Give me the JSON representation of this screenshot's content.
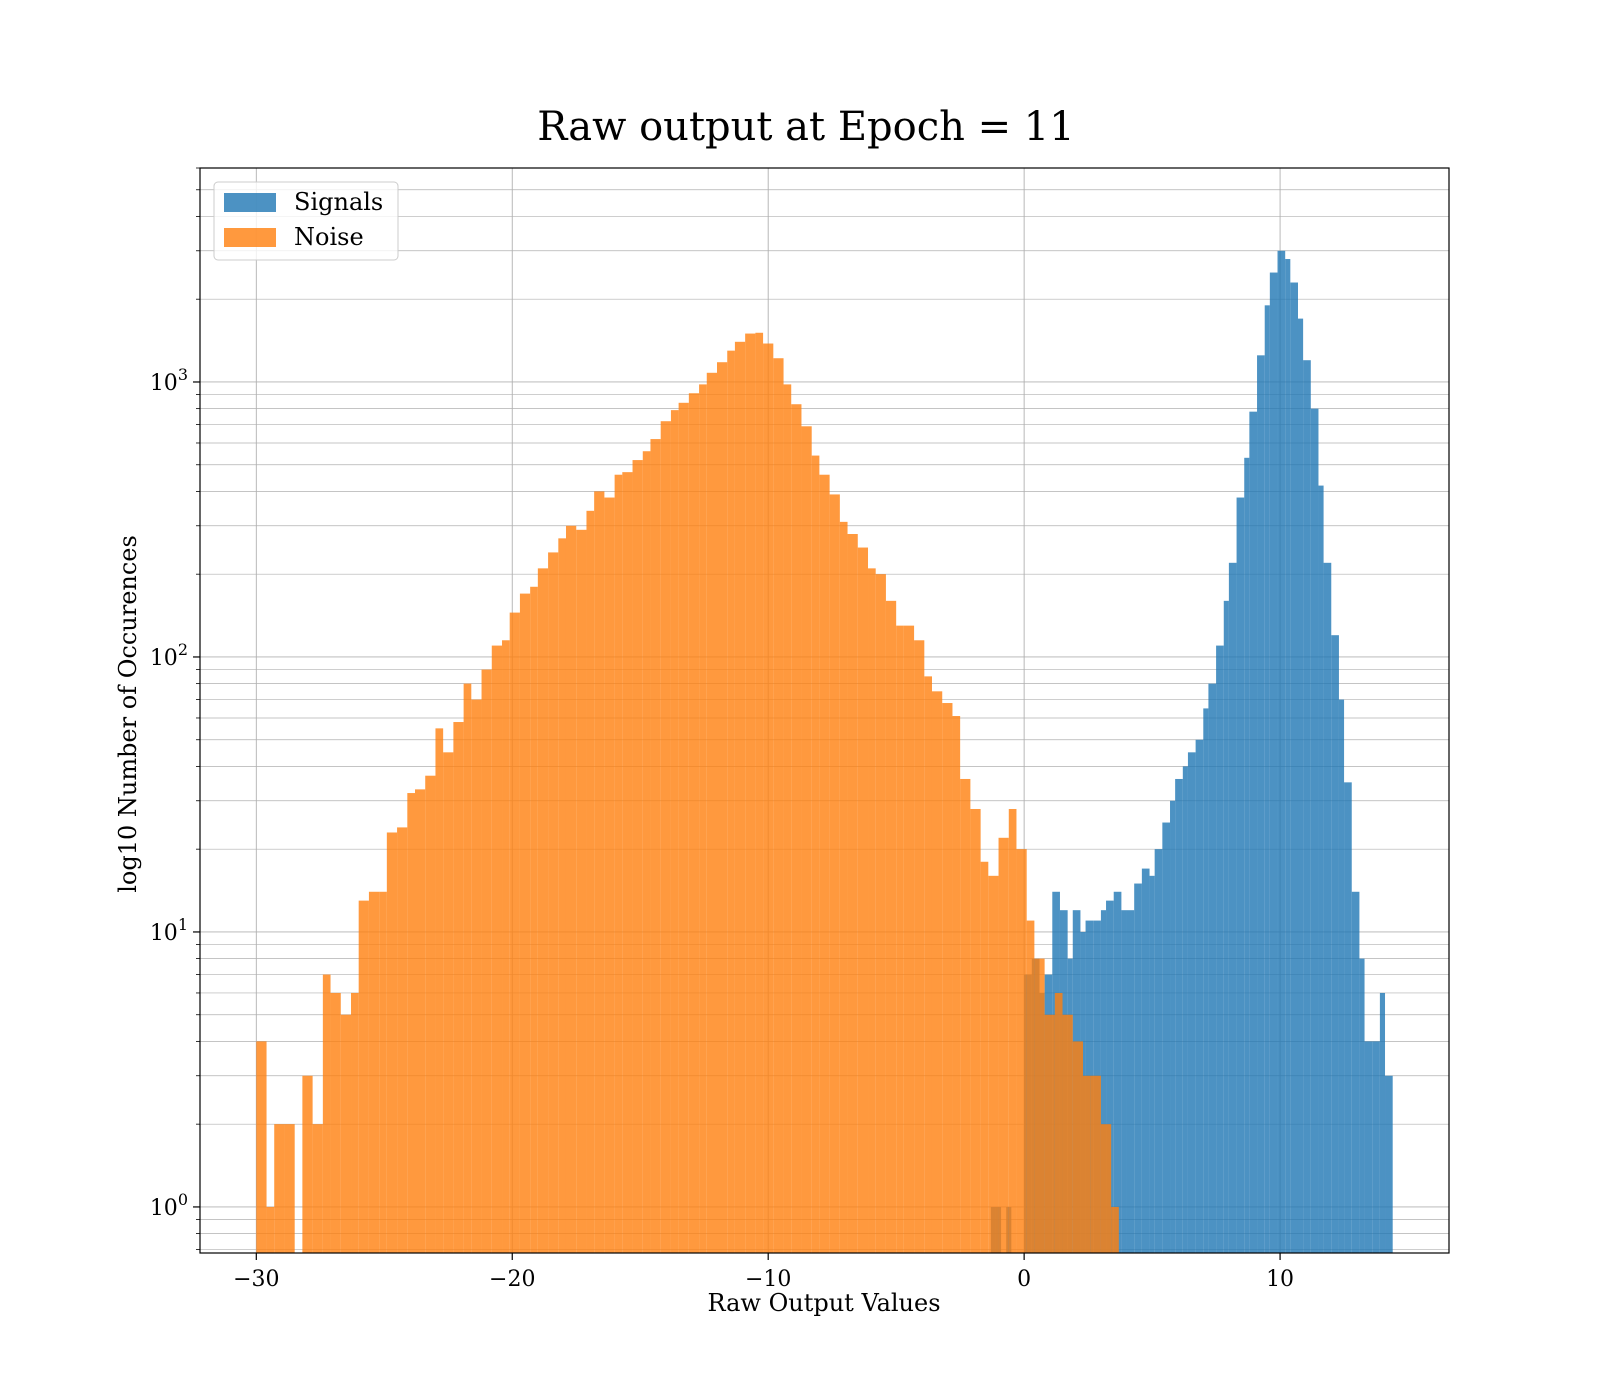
{
  "chart_data": {
    "type": "bar",
    "histogram": true,
    "title": "Raw output at Epoch = 11",
    "xlabel": "Raw Output Values",
    "ylabel": "log10 Number of Occurences",
    "xlim": [
      -32.2,
      16.6
    ],
    "ylim": [
      0.68,
      6000
    ],
    "yscale": "log",
    "grid": true,
    "legend_position": "upper left",
    "x_ticks": [
      {
        "value": -30,
        "label": "−30"
      },
      {
        "value": -20,
        "label": "−20"
      },
      {
        "value": -10,
        "label": "−10"
      },
      {
        "value": 0,
        "label": "0"
      },
      {
        "value": 10,
        "label": "10"
      }
    ],
    "y_ticks": [
      {
        "value": 1,
        "base": "10",
        "exp": "0"
      },
      {
        "value": 10,
        "base": "10",
        "exp": "1"
      },
      {
        "value": 100,
        "base": "10",
        "exp": "2"
      },
      {
        "value": 1000,
        "base": "10",
        "exp": "3"
      }
    ],
    "series": [
      {
        "name": "Signals",
        "color": "#1f77b4",
        "bins": [
          [
            -1.3,
            -1.1,
            1
          ],
          [
            -1.1,
            -0.9,
            1
          ],
          [
            -0.7,
            -0.5,
            1
          ],
          [
            0.0,
            0.3,
            7
          ],
          [
            0.3,
            0.6,
            8
          ],
          [
            0.6,
            0.8,
            6
          ],
          [
            0.8,
            1.1,
            7
          ],
          [
            1.1,
            1.4,
            14
          ],
          [
            1.4,
            1.7,
            12
          ],
          [
            1.7,
            1.9,
            8
          ],
          [
            1.9,
            2.2,
            12
          ],
          [
            2.2,
            2.4,
            10
          ],
          [
            2.4,
            2.7,
            11
          ],
          [
            2.7,
            3.0,
            11
          ],
          [
            3.0,
            3.2,
            12
          ],
          [
            3.2,
            3.5,
            13
          ],
          [
            3.5,
            3.8,
            14
          ],
          [
            3.8,
            4.0,
            12
          ],
          [
            4.0,
            4.3,
            12
          ],
          [
            4.3,
            4.6,
            15
          ],
          [
            4.6,
            4.9,
            17
          ],
          [
            4.9,
            5.1,
            16
          ],
          [
            5.1,
            5.4,
            20
          ],
          [
            5.4,
            5.7,
            25
          ],
          [
            5.7,
            5.9,
            30
          ],
          [
            5.9,
            6.2,
            36
          ],
          [
            6.2,
            6.4,
            40
          ],
          [
            6.4,
            6.7,
            45
          ],
          [
            6.7,
            7.0,
            50
          ],
          [
            7.0,
            7.2,
            65
          ],
          [
            7.2,
            7.5,
            80
          ],
          [
            7.5,
            7.8,
            110
          ],
          [
            7.8,
            8.0,
            160
          ],
          [
            8.0,
            8.3,
            220
          ],
          [
            8.3,
            8.6,
            380
          ],
          [
            8.6,
            8.8,
            530
          ],
          [
            8.8,
            9.1,
            780
          ],
          [
            9.1,
            9.4,
            1250
          ],
          [
            9.4,
            9.6,
            1900
          ],
          [
            9.6,
            9.9,
            2500
          ],
          [
            9.9,
            10.2,
            3000
          ],
          [
            10.2,
            10.4,
            2800
          ],
          [
            10.4,
            10.7,
            2300
          ],
          [
            10.7,
            10.9,
            1700
          ],
          [
            10.9,
            11.2,
            1200
          ],
          [
            11.2,
            11.5,
            800
          ],
          [
            11.5,
            11.7,
            420
          ],
          [
            11.7,
            12.0,
            220
          ],
          [
            12.0,
            12.3,
            120
          ],
          [
            12.3,
            12.5,
            70
          ],
          [
            12.5,
            12.8,
            35
          ],
          [
            12.8,
            13.1,
            14
          ],
          [
            13.1,
            13.3,
            8
          ],
          [
            13.3,
            13.6,
            4
          ],
          [
            13.6,
            13.9,
            4
          ],
          [
            13.9,
            14.1,
            6
          ],
          [
            14.1,
            14.4,
            3
          ]
        ]
      },
      {
        "name": "Noise",
        "color": "#ff7f0e",
        "bins": [
          [
            -30.0,
            -29.6,
            4
          ],
          [
            -29.6,
            -29.3,
            1
          ],
          [
            -29.3,
            -28.9,
            2
          ],
          [
            -28.9,
            -28.5,
            2
          ],
          [
            -28.2,
            -27.8,
            3
          ],
          [
            -27.8,
            -27.4,
            2
          ],
          [
            -27.4,
            -27.1,
            7
          ],
          [
            -27.1,
            -26.7,
            6
          ],
          [
            -26.7,
            -26.3,
            5
          ],
          [
            -26.3,
            -26.0,
            6
          ],
          [
            -26.0,
            -25.6,
            13
          ],
          [
            -25.6,
            -25.2,
            14
          ],
          [
            -25.2,
            -24.9,
            14
          ],
          [
            -24.9,
            -24.5,
            23
          ],
          [
            -24.5,
            -24.1,
            24
          ],
          [
            -24.1,
            -23.8,
            32
          ],
          [
            -23.8,
            -23.4,
            33
          ],
          [
            -23.4,
            -23.0,
            37
          ],
          [
            -23.0,
            -22.7,
            55
          ],
          [
            -22.7,
            -22.3,
            45
          ],
          [
            -22.3,
            -21.9,
            58
          ],
          [
            -21.9,
            -21.6,
            80
          ],
          [
            -21.6,
            -21.2,
            70
          ],
          [
            -21.2,
            -20.8,
            90
          ],
          [
            -20.8,
            -20.4,
            110
          ],
          [
            -20.4,
            -20.1,
            115
          ],
          [
            -20.1,
            -19.7,
            145
          ],
          [
            -19.7,
            -19.3,
            170
          ],
          [
            -19.3,
            -19.0,
            180
          ],
          [
            -19.0,
            -18.6,
            210
          ],
          [
            -18.6,
            -18.2,
            240
          ],
          [
            -18.2,
            -17.9,
            270
          ],
          [
            -17.9,
            -17.5,
            300
          ],
          [
            -17.5,
            -17.1,
            290
          ],
          [
            -17.1,
            -16.8,
            340
          ],
          [
            -16.8,
            -16.4,
            400
          ],
          [
            -16.4,
            -16.0,
            380
          ],
          [
            -16.0,
            -15.7,
            460
          ],
          [
            -15.7,
            -15.3,
            470
          ],
          [
            -15.3,
            -14.9,
            520
          ],
          [
            -14.9,
            -14.6,
            560
          ],
          [
            -14.6,
            -14.2,
            620
          ],
          [
            -14.2,
            -13.8,
            720
          ],
          [
            -13.8,
            -13.5,
            790
          ],
          [
            -13.5,
            -13.1,
            840
          ],
          [
            -13.1,
            -12.7,
            910
          ],
          [
            -12.7,
            -12.4,
            980
          ],
          [
            -12.4,
            -12.0,
            1080
          ],
          [
            -12.0,
            -11.6,
            1180
          ],
          [
            -11.6,
            -11.3,
            1300
          ],
          [
            -11.3,
            -10.9,
            1400
          ],
          [
            -10.9,
            -10.5,
            1500
          ],
          [
            -10.5,
            -10.2,
            1510
          ],
          [
            -10.2,
            -9.8,
            1380
          ],
          [
            -9.8,
            -9.4,
            1220
          ],
          [
            -9.4,
            -9.1,
            980
          ],
          [
            -9.1,
            -8.7,
            830
          ],
          [
            -8.7,
            -8.3,
            690
          ],
          [
            -8.3,
            -8.0,
            540
          ],
          [
            -8.0,
            -7.6,
            460
          ],
          [
            -7.6,
            -7.2,
            390
          ],
          [
            -7.2,
            -6.9,
            310
          ],
          [
            -6.9,
            -6.5,
            280
          ],
          [
            -6.5,
            -6.1,
            250
          ],
          [
            -6.1,
            -5.8,
            210
          ],
          [
            -5.8,
            -5.4,
            200
          ],
          [
            -5.4,
            -5.0,
            160
          ],
          [
            -5.0,
            -4.7,
            130
          ],
          [
            -4.7,
            -4.3,
            130
          ],
          [
            -4.3,
            -3.9,
            115
          ],
          [
            -3.9,
            -3.6,
            85
          ],
          [
            -3.6,
            -3.2,
            75
          ],
          [
            -3.2,
            -2.8,
            68
          ],
          [
            -2.8,
            -2.5,
            61
          ],
          [
            -2.5,
            -2.1,
            36
          ],
          [
            -2.1,
            -1.7,
            28
          ],
          [
            -1.7,
            -1.4,
            18
          ],
          [
            -1.4,
            -1.0,
            16
          ],
          [
            -1.0,
            -0.6,
            22
          ],
          [
            -0.6,
            -0.3,
            28
          ],
          [
            -0.3,
            0.1,
            20
          ],
          [
            0.1,
            0.4,
            11
          ],
          [
            0.4,
            0.8,
            8
          ],
          [
            0.8,
            1.2,
            5
          ],
          [
            1.2,
            1.5,
            6
          ],
          [
            1.5,
            1.9,
            5
          ],
          [
            1.9,
            2.3,
            4
          ],
          [
            2.3,
            2.6,
            3
          ],
          [
            2.6,
            3.0,
            3
          ],
          [
            3.0,
            3.4,
            2
          ],
          [
            3.4,
            3.7,
            1
          ]
        ]
      }
    ]
  }
}
